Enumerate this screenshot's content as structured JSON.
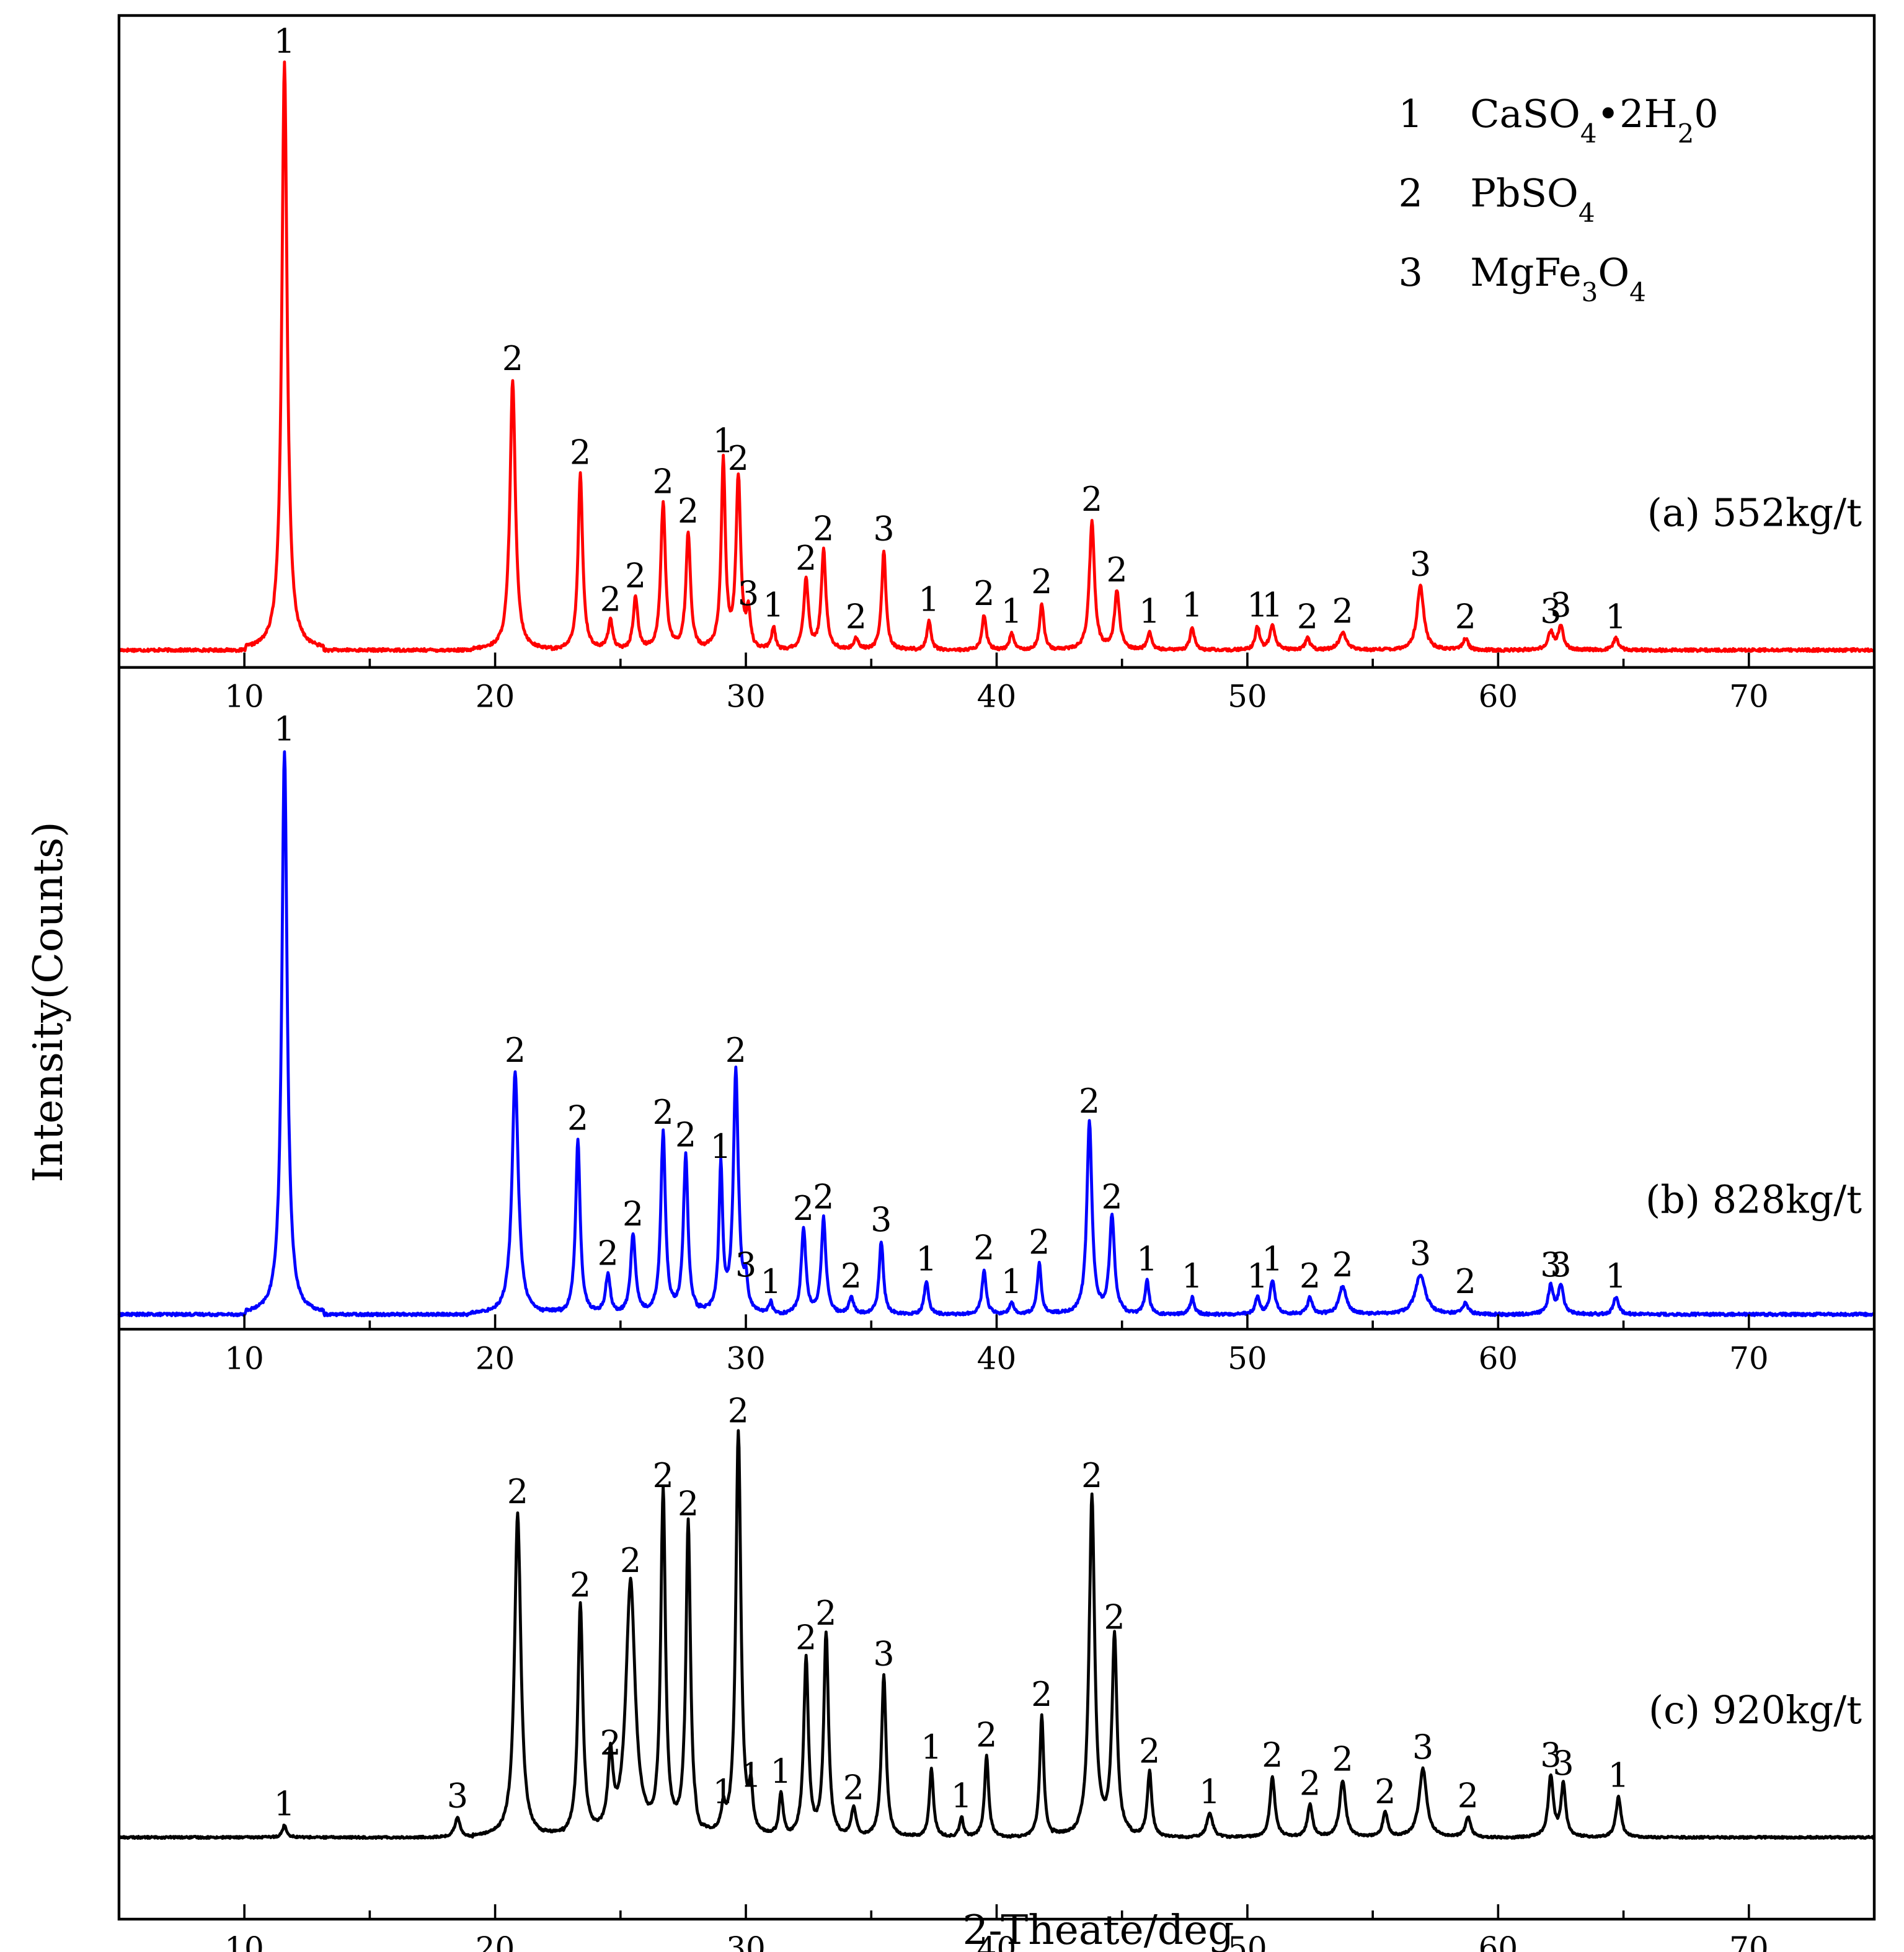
{
  "chart_data": {
    "type": "line",
    "xlabel": "2-Theate/deg",
    "ylabel": "Intensity(Counts)",
    "xlim": [
      5,
      75
    ],
    "xticks": [
      10,
      20,
      30,
      40,
      50,
      60,
      70
    ],
    "legend": {
      "placement": "top-right",
      "entries": [
        {
          "id": "1",
          "parts": [
            {
              "t": "CaSO"
            },
            {
              "t": "4",
              "sub": true
            },
            {
              "t": "•2H"
            },
            {
              "t": "2",
              "sub": true
            },
            {
              "t": "0"
            }
          ]
        },
        {
          "id": "2",
          "parts": [
            {
              "t": "PbSO"
            },
            {
              "t": "4",
              "sub": true
            }
          ]
        },
        {
          "id": "3",
          "parts": [
            {
              "t": "MgFe"
            },
            {
              "t": "3",
              "sub": true
            },
            {
              "t": "O"
            },
            {
              "t": "4",
              "sub": true
            }
          ]
        }
      ]
    },
    "panels": [
      {
        "label": "(a)  552kg/t",
        "color": "#ff0000",
        "ymax": 100,
        "peaks": [
          {
            "x": 11.6,
            "y": 100,
            "w": 0.13,
            "phase": "1"
          },
          {
            "x": 20.7,
            "y": 46,
            "w": 0.13,
            "phase": "2"
          },
          {
            "x": 23.4,
            "y": 30,
            "w": 0.11,
            "phase": "2"
          },
          {
            "x": 24.6,
            "y": 5,
            "w": 0.11,
            "phase": "2"
          },
          {
            "x": 25.6,
            "y": 9,
            "w": 0.11,
            "phase": "2"
          },
          {
            "x": 26.7,
            "y": 25,
            "w": 0.11,
            "phase": "2"
          },
          {
            "x": 27.7,
            "y": 20,
            "w": 0.11,
            "phase": "2"
          },
          {
            "x": 29.1,
            "y": 32,
            "w": 0.1,
            "phase": "1"
          },
          {
            "x": 29.7,
            "y": 29,
            "w": 0.11,
            "phase": "2"
          },
          {
            "x": 30.1,
            "y": 6,
            "w": 0.09,
            "phase": "3"
          },
          {
            "x": 31.1,
            "y": 4,
            "w": 0.09,
            "phase": "1"
          },
          {
            "x": 32.4,
            "y": 12,
            "w": 0.11,
            "phase": "2"
          },
          {
            "x": 33.1,
            "y": 17,
            "w": 0.11,
            "phase": "2"
          },
          {
            "x": 34.4,
            "y": 2,
            "w": 0.12,
            "phase": "2"
          },
          {
            "x": 35.5,
            "y": 17,
            "w": 0.1,
            "phase": "3"
          },
          {
            "x": 37.3,
            "y": 5,
            "w": 0.1,
            "phase": "1"
          },
          {
            "x": 39.5,
            "y": 6,
            "w": 0.1,
            "phase": "2"
          },
          {
            "x": 40.6,
            "y": 3,
            "w": 0.1,
            "phase": "1"
          },
          {
            "x": 41.8,
            "y": 8,
            "w": 0.1,
            "phase": "2"
          },
          {
            "x": 43.8,
            "y": 22,
            "w": 0.12,
            "phase": "2"
          },
          {
            "x": 44.8,
            "y": 10,
            "w": 0.12,
            "phase": "2"
          },
          {
            "x": 46.1,
            "y": 3,
            "w": 0.11,
            "phase": "1"
          },
          {
            "x": 47.8,
            "y": 4,
            "w": 0.1,
            "phase": "1"
          },
          {
            "x": 50.4,
            "y": 4,
            "w": 0.1,
            "phase": "1"
          },
          {
            "x": 51.0,
            "y": 4,
            "w": 0.13,
            "phase": "1"
          },
          {
            "x": 52.4,
            "y": 2,
            "w": 0.11,
            "phase": "2"
          },
          {
            "x": 53.8,
            "y": 3,
            "w": 0.17,
            "phase": "2"
          },
          {
            "x": 56.9,
            "y": 11,
            "w": 0.16,
            "phase": "3"
          },
          {
            "x": 58.7,
            "y": 2,
            "w": 0.12,
            "phase": "2"
          },
          {
            "x": 62.1,
            "y": 3,
            "w": 0.14,
            "phase": "3"
          },
          {
            "x": 62.5,
            "y": 4,
            "w": 0.12,
            "phase": "3"
          },
          {
            "x": 64.7,
            "y": 2,
            "w": 0.12,
            "phase": "1"
          }
        ]
      },
      {
        "label": "(b) 828kg/t",
        "color": "#0000ff",
        "ymax": 100,
        "peaks": [
          {
            "x": 11.6,
            "y": 100,
            "w": 0.13,
            "phase": "1"
          },
          {
            "x": 20.8,
            "y": 43,
            "w": 0.15,
            "phase": "2"
          },
          {
            "x": 23.3,
            "y": 31,
            "w": 0.11,
            "phase": "2"
          },
          {
            "x": 24.5,
            "y": 7,
            "w": 0.11,
            "phase": "2"
          },
          {
            "x": 25.5,
            "y": 14,
            "w": 0.12,
            "phase": "2"
          },
          {
            "x": 26.7,
            "y": 32,
            "w": 0.11,
            "phase": "2"
          },
          {
            "x": 27.6,
            "y": 28,
            "w": 0.11,
            "phase": "2"
          },
          {
            "x": 29.0,
            "y": 26,
            "w": 0.09,
            "phase": "1"
          },
          {
            "x": 29.6,
            "y": 43,
            "w": 0.12,
            "phase": "2"
          },
          {
            "x": 30.0,
            "y": 5,
            "w": 0.09,
            "phase": "3"
          },
          {
            "x": 31.0,
            "y": 2,
            "w": 0.09,
            "phase": "1"
          },
          {
            "x": 32.3,
            "y": 15,
            "w": 0.11,
            "phase": "2"
          },
          {
            "x": 33.1,
            "y": 17,
            "w": 0.11,
            "phase": "2"
          },
          {
            "x": 34.2,
            "y": 3,
            "w": 0.11,
            "phase": "2"
          },
          {
            "x": 35.4,
            "y": 13,
            "w": 0.1,
            "phase": "3"
          },
          {
            "x": 37.2,
            "y": 6,
            "w": 0.1,
            "phase": "1"
          },
          {
            "x": 39.5,
            "y": 8,
            "w": 0.1,
            "phase": "2"
          },
          {
            "x": 40.6,
            "y": 2,
            "w": 0.1,
            "phase": "1"
          },
          {
            "x": 41.7,
            "y": 9,
            "w": 0.1,
            "phase": "2"
          },
          {
            "x": 43.7,
            "y": 34,
            "w": 0.12,
            "phase": "2"
          },
          {
            "x": 44.6,
            "y": 17,
            "w": 0.12,
            "phase": "2"
          },
          {
            "x": 46.0,
            "y": 6,
            "w": 0.1,
            "phase": "1"
          },
          {
            "x": 47.8,
            "y": 3,
            "w": 0.1,
            "phase": "1"
          },
          {
            "x": 50.4,
            "y": 3,
            "w": 0.1,
            "phase": "1"
          },
          {
            "x": 51.0,
            "y": 6,
            "w": 0.12,
            "phase": "1"
          },
          {
            "x": 52.5,
            "y": 3,
            "w": 0.11,
            "phase": "2"
          },
          {
            "x": 53.8,
            "y": 5,
            "w": 0.17,
            "phase": "2"
          },
          {
            "x": 56.9,
            "y": 7,
            "w": 0.24,
            "phase": "3"
          },
          {
            "x": 58.7,
            "y": 2,
            "w": 0.12,
            "phase": "2"
          },
          {
            "x": 62.1,
            "y": 5,
            "w": 0.12,
            "phase": "3"
          },
          {
            "x": 62.5,
            "y": 5,
            "w": 0.12,
            "phase": "3"
          },
          {
            "x": 64.7,
            "y": 3,
            "w": 0.12,
            "phase": "1"
          }
        ]
      },
      {
        "label": "(c)  920kg/t",
        "color": "#000000",
        "ymax": 100,
        "peaks": [
          {
            "x": 11.6,
            "y": 3,
            "w": 0.1,
            "phase": "1"
          },
          {
            "x": 18.5,
            "y": 5,
            "w": 0.13,
            "phase": "3"
          },
          {
            "x": 20.9,
            "y": 80,
            "w": 0.15,
            "phase": "2"
          },
          {
            "x": 23.4,
            "y": 57,
            "w": 0.12,
            "phase": "2"
          },
          {
            "x": 24.6,
            "y": 18,
            "w": 0.12,
            "phase": "2"
          },
          {
            "x": 25.4,
            "y": 63,
            "w": 0.22,
            "phase": "2"
          },
          {
            "x": 26.7,
            "y": 84,
            "w": 0.11,
            "phase": "2"
          },
          {
            "x": 27.7,
            "y": 77,
            "w": 0.11,
            "phase": "2"
          },
          {
            "x": 29.1,
            "y": 6,
            "w": 0.1,
            "phase": "1"
          },
          {
            "x": 29.7,
            "y": 100,
            "w": 0.12,
            "phase": "2"
          },
          {
            "x": 30.2,
            "y": 10,
            "w": 0.09,
            "phase": "1"
          },
          {
            "x": 31.4,
            "y": 11,
            "w": 0.1,
            "phase": "1"
          },
          {
            "x": 32.4,
            "y": 44,
            "w": 0.11,
            "phase": "2"
          },
          {
            "x": 33.2,
            "y": 50,
            "w": 0.11,
            "phase": "2"
          },
          {
            "x": 34.3,
            "y": 7,
            "w": 0.12,
            "phase": "2"
          },
          {
            "x": 35.5,
            "y": 40,
            "w": 0.11,
            "phase": "3"
          },
          {
            "x": 37.4,
            "y": 17,
            "w": 0.1,
            "phase": "1"
          },
          {
            "x": 38.6,
            "y": 5,
            "w": 0.09,
            "phase": "1"
          },
          {
            "x": 39.6,
            "y": 20,
            "w": 0.1,
            "phase": "2"
          },
          {
            "x": 41.8,
            "y": 30,
            "w": 0.1,
            "phase": "2"
          },
          {
            "x": 43.8,
            "y": 84,
            "w": 0.13,
            "phase": "2"
          },
          {
            "x": 44.7,
            "y": 49,
            "w": 0.12,
            "phase": "2"
          },
          {
            "x": 46.1,
            "y": 16,
            "w": 0.11,
            "phase": "2"
          },
          {
            "x": 48.5,
            "y": 6,
            "w": 0.14,
            "phase": "1"
          },
          {
            "x": 51.0,
            "y": 15,
            "w": 0.12,
            "phase": "2"
          },
          {
            "x": 52.5,
            "y": 8,
            "w": 0.12,
            "phase": "2"
          },
          {
            "x": 53.8,
            "y": 14,
            "w": 0.14,
            "phase": "2"
          },
          {
            "x": 55.5,
            "y": 6,
            "w": 0.12,
            "phase": "2"
          },
          {
            "x": 57.0,
            "y": 17,
            "w": 0.18,
            "phase": "3"
          },
          {
            "x": 58.8,
            "y": 5,
            "w": 0.12,
            "phase": "2"
          },
          {
            "x": 62.1,
            "y": 15,
            "w": 0.12,
            "phase": "3"
          },
          {
            "x": 62.6,
            "y": 13,
            "w": 0.11,
            "phase": "3"
          },
          {
            "x": 64.8,
            "y": 10,
            "w": 0.12,
            "phase": "1"
          }
        ]
      }
    ]
  }
}
